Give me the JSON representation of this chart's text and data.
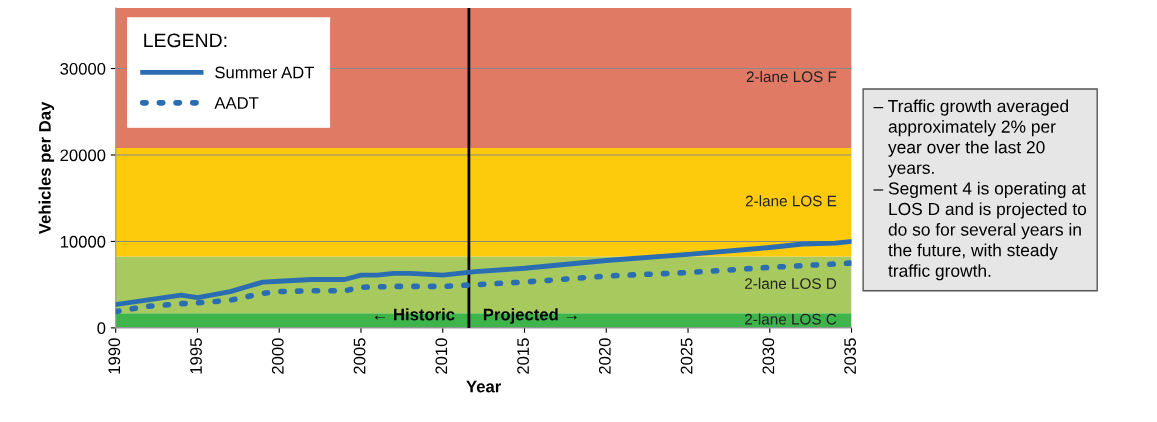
{
  "chart_data": {
    "type": "line",
    "xlabel": "Year",
    "ylabel": "Vehicles per Day",
    "legend_title": "LEGEND:",
    "xlim": [
      1990,
      2035
    ],
    "xticks": [
      1990,
      1995,
      2000,
      2005,
      2010,
      2015,
      2020,
      2025,
      2030,
      2035
    ],
    "ylim": [
      0,
      37000
    ],
    "yticks": [
      0,
      10000,
      20000,
      30000
    ],
    "grid": "y",
    "legend": "top left",
    "series": [
      {
        "name": "Summer ADT",
        "color": "#2a6db3",
        "line_style": "solid",
        "x": [
          1990,
          1994,
          1995,
          1997,
          1999,
          2000,
          2002,
          2004,
          2005,
          2006,
          2007,
          2008,
          2010,
          2012,
          2015,
          2020,
          2025,
          2030,
          2032,
          2034,
          2035
        ],
        "values": [
          2700,
          3800,
          3500,
          4200,
          5300,
          5400,
          5600,
          5600,
          6100,
          6100,
          6300,
          6300,
          6100,
          6500,
          6900,
          7800,
          8500,
          9300,
          9700,
          9800,
          10000
        ]
      },
      {
        "name": "AADT",
        "color": "#2a6db3",
        "line_style": "dotted",
        "x": [
          1990,
          1992,
          1994,
          1995,
          1997,
          1998,
          1999,
          2000,
          2002,
          2004,
          2005,
          2007,
          2010,
          2012,
          2015,
          2020,
          2025,
          2030,
          2035
        ],
        "values": [
          1900,
          2500,
          2800,
          2900,
          3200,
          3600,
          4000,
          4200,
          4300,
          4300,
          4700,
          4800,
          4800,
          5000,
          5300,
          6000,
          6400,
          7000,
          7500
        ]
      }
    ],
    "bands": [
      {
        "axis": "y",
        "from": 0,
        "to": 1700,
        "label": "2-lane LOS C",
        "color": "#3db54b"
      },
      {
        "axis": "y",
        "from": 1700,
        "to": 8250,
        "label": "2-lane LOS D",
        "color": "#a7c95d"
      },
      {
        "axis": "y",
        "from": 8250,
        "to": 20800,
        "label": "2-lane LOS E",
        "color": "#fdca0c"
      },
      {
        "axis": "y",
        "from": 20800,
        "to": 37000,
        "label": "2-lane LOS F",
        "color": "#e07a64"
      }
    ],
    "ref_lines": [
      {
        "axis": "x",
        "value": 2011.6,
        "color": "#000000",
        "line_style": "solid"
      }
    ],
    "annotations": [
      "← Historic",
      "Projected →",
      "– Traffic growth averaged\n   approximately 2% per\n   year over the last 20\n   years.\n– Segment 4 is operating at\n   LOS D and is projected to\n   do so for several years in\n   the future, with steady\n   traffic growth."
    ]
  }
}
